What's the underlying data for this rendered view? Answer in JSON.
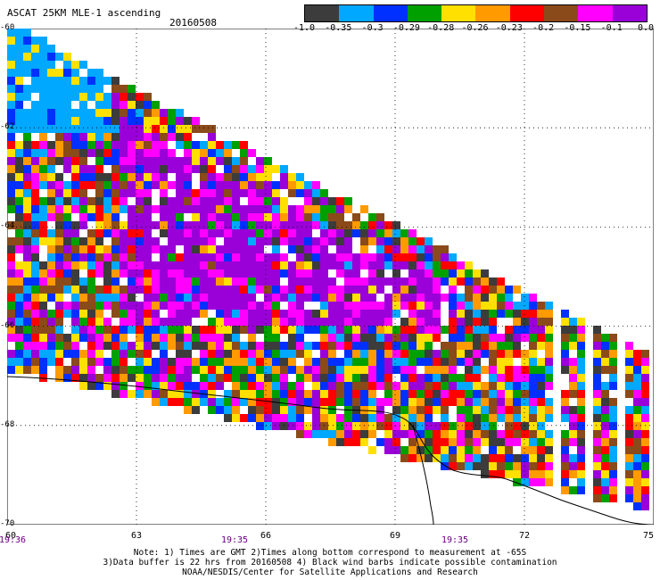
{
  "header": {
    "title": "ASCAT 25KM MLE-1 ascending",
    "date": "20160508"
  },
  "colorbar": {
    "labels": [
      "-1.0",
      "-0.35",
      "-0.3",
      "-0.29",
      "-0.28",
      "-0.26",
      "-0.23",
      "-0.2",
      "-0.15",
      "-0.1",
      "0.0"
    ],
    "colors": [
      "#3c3c3c",
      "#00a8ff",
      "#0030ff",
      "#00a000",
      "#ffe000",
      "#ff9a00",
      "#ff0000",
      "#8b4a1a",
      "#ff00ff",
      "#9a00d8"
    ]
  },
  "map": {
    "lat_labels": [
      "-60",
      "-62",
      "-64",
      "-66",
      "-68",
      "-70"
    ],
    "lon_labels": [
      "60",
      "63",
      "66",
      "69",
      "72",
      "75"
    ],
    "times": [
      "19:36",
      "19:35",
      "19:35"
    ]
  },
  "notes": {
    "line1": "Note: 1) Times are GMT 2)Times along bottom correspond to measurement at -65S",
    "line2": "3)Data buffer is 22 hrs from 20160508 4) Black wind barbs indicate possible contamination",
    "line3": "NOAA/NESDIS/Center for Satellite Applications and Research"
  }
}
